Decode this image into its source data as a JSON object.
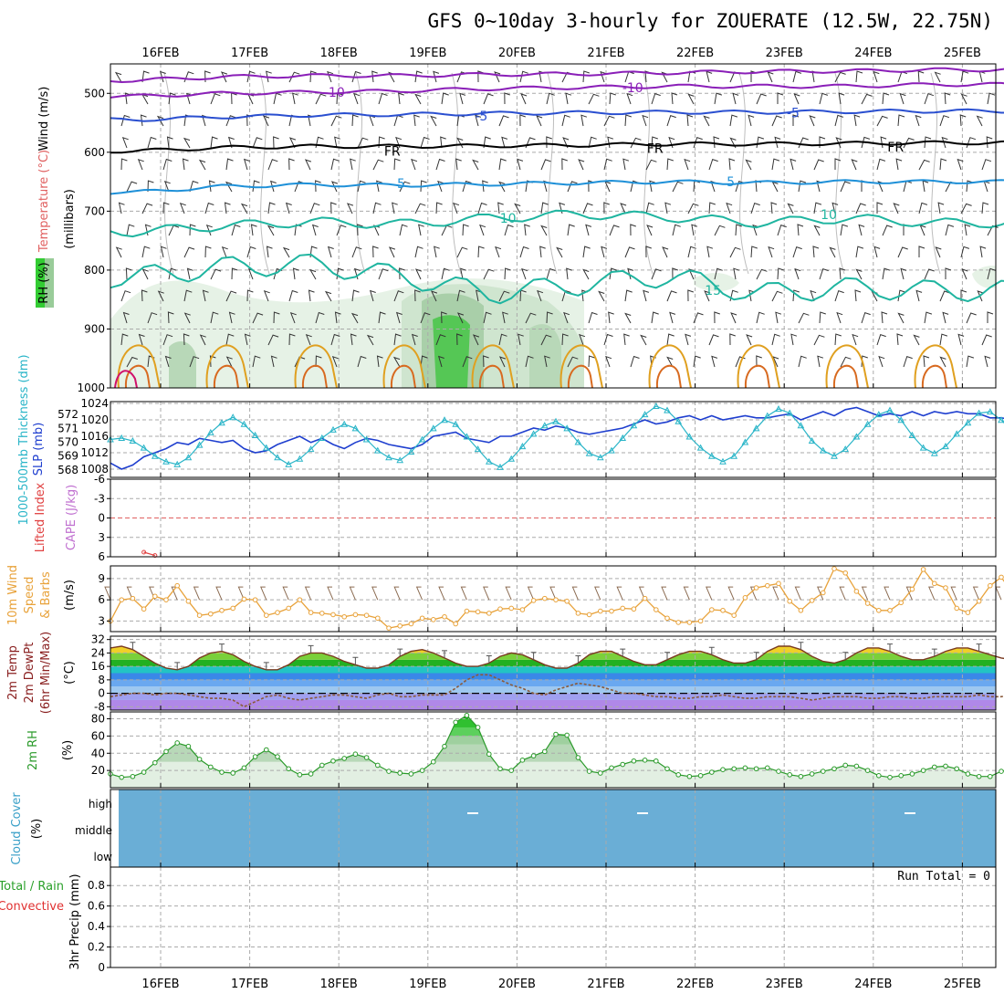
{
  "title": "GFS 0~10day 3-hourly for ZOUERATE (12.5W, 22.75N)",
  "dates": [
    "16FEB",
    "17FEB",
    "18FEB",
    "19FEB",
    "20FEB",
    "21FEB",
    "22FEB",
    "23FEB",
    "24FEB",
    "25FEB"
  ],
  "colors": {
    "slp": "#1f3fcf",
    "thickness": "#2ab5c8",
    "wind10m": "#e8a23a",
    "rh": "#2a9a2a",
    "cloud": "#6aaed6",
    "temp_zero": "#000000"
  },
  "chart_data": [
    {
      "id": "upper-air",
      "type": "contour",
      "ylabel_parts": [
        "Wind (m/s)",
        "Temperature (°C)",
        "RH (%)"
      ],
      "ylabel_unit": "(millibars)",
      "yticks": [
        500,
        600,
        700,
        800,
        900,
        1000
      ],
      "ylim": [
        450,
        1000
      ],
      "isotherms": [
        {
          "label": "-10",
          "color": "#8a1fb8",
          "p": [
            478,
            472,
            470,
            470,
            468,
            467,
            465,
            463,
            462,
            460
          ]
        },
        {
          "label": "-10",
          "color": "#8a1fb8",
          "p": [
            505,
            500,
            498,
            496,
            492,
            490,
            488,
            488,
            488,
            485
          ]
        },
        {
          "label": "-5",
          "color": "#2a4fd0",
          "p": [
            545,
            540,
            537,
            536,
            534,
            533,
            532,
            532,
            531,
            530
          ]
        },
        {
          "label": "FR",
          "color": "#000000",
          "p": [
            598,
            592,
            590,
            590,
            589,
            588,
            586,
            586,
            585,
            584
          ]
        },
        {
          "label": "5",
          "color": "#1e90d8",
          "p": [
            668,
            658,
            655,
            656,
            654,
            652,
            650,
            652,
            650,
            650
          ]
        },
        {
          "label": "10",
          "color": "#1fb5a0",
          "p": [
            735,
            725,
            718,
            722,
            712,
            705,
            710,
            720,
            712,
            720
          ]
        },
        {
          "label": "15",
          "color": "#1fb5a0",
          "p": [
            812,
            795,
            790,
            810,
            840,
            825,
            810,
            840,
            830,
            835
          ]
        }
      ],
      "contour_labels": [
        {
          "text": "-10",
          "date": 1.95,
          "p": 498,
          "color": "#8a1fb8"
        },
        {
          "text": "-10",
          "date": 5.3,
          "p": 490,
          "color": "#8a1fb8"
        },
        {
          "text": "-5",
          "date": 3.6,
          "p": 538,
          "color": "#2a4fd0"
        },
        {
          "text": "-5",
          "date": 7.1,
          "p": 533,
          "color": "#2a4fd0"
        },
        {
          "text": "FR",
          "date": 2.6,
          "p": 598,
          "color": "#000000"
        },
        {
          "text": "FR",
          "date": 5.55,
          "p": 593,
          "color": "#000000"
        },
        {
          "text": "FR",
          "date": 8.25,
          "p": 591,
          "color": "#000000"
        },
        {
          "text": "5",
          "date": 2.7,
          "p": 653,
          "color": "#1e90d8"
        },
        {
          "text": "5",
          "date": 6.4,
          "p": 650,
          "color": "#1e90d8"
        },
        {
          "text": "10",
          "date": 3.9,
          "p": 712,
          "color": "#1fb5a0"
        },
        {
          "text": "10",
          "date": 7.5,
          "p": 706,
          "color": "#1fb5a0"
        },
        {
          "text": "15",
          "date": 6.2,
          "p": 834,
          "color": "#1fb5a0"
        }
      ]
    },
    {
      "id": "slp-thickness",
      "type": "line",
      "ylabel_left": "1000-500mb Thickness (dm)",
      "ylabel_right": "SLP (mb)",
      "yticks_thk": [
        568,
        569,
        570,
        571,
        572
      ],
      "yticks_slp": [
        1008,
        1012,
        1016,
        1020,
        1024
      ],
      "series": [
        {
          "key": "slp",
          "values": [
            1009.5,
            1008.0,
            1009.0,
            1011.0,
            1012.0,
            1013.0,
            1014.5,
            1014.0,
            1015.5,
            1015.0,
            1014.5,
            1015.0,
            1013.0,
            1012.0,
            1012.5,
            1014.0,
            1015.0,
            1016.0,
            1014.5,
            1015.5,
            1014.0,
            1013.0,
            1014.5,
            1015.5,
            1015.0,
            1014.0,
            1013.5,
            1013.0,
            1014.0,
            1016.0,
            1016.5,
            1017.0,
            1015.5,
            1015.0,
            1014.5,
            1016.0,
            1016.0,
            1017.0,
            1018.0,
            1017.5,
            1018.5,
            1018.0,
            1017.0,
            1016.5,
            1017.0,
            1017.5,
            1018.0,
            1019.0,
            1020.0,
            1019.0,
            1019.5,
            1020.5,
            1021.0,
            1020.0,
            1021.0,
            1020.0,
            1020.5,
            1021.0,
            1020.5,
            1020.5,
            1021.0,
            1021.5,
            1020.0,
            1021.0,
            1022.0,
            1021.0,
            1022.5,
            1023.0,
            1022.0,
            1021.0,
            1021.5,
            1021.0,
            1022.0,
            1021.0,
            1022.0,
            1021.5,
            1022.0,
            1021.5,
            1021.5,
            1020.5,
            1020.5,
            1020.0,
            1020.0
          ]
        },
        {
          "key": "thickness",
          "values": [
            570.2,
            570.3,
            570.1,
            569.6,
            569.0,
            568.6,
            568.4,
            568.9,
            569.8,
            570.7,
            571.4,
            571.8,
            571.3,
            570.5,
            569.6,
            568.9,
            568.4,
            568.8,
            569.5,
            570.3,
            570.9,
            571.3,
            571.0,
            570.2,
            569.4,
            568.9,
            568.7,
            569.3,
            570.2,
            571.0,
            571.6,
            571.3,
            570.4,
            569.5,
            568.6,
            568.2,
            568.8,
            569.7,
            570.6,
            571.2,
            571.5,
            571.0,
            570.0,
            569.2,
            568.9,
            569.4,
            570.3,
            571.2,
            572.0,
            572.6,
            572.3,
            571.5,
            570.4,
            569.6,
            569.0,
            568.6,
            569.0,
            570.0,
            571.0,
            571.9,
            572.4,
            572.1,
            571.2,
            570.1,
            569.4,
            569.0,
            569.5,
            570.4,
            571.3,
            572.0,
            572.3,
            571.6,
            570.5,
            569.6,
            569.2,
            569.7,
            570.6,
            571.4,
            572.1,
            572.2,
            571.6,
            570.8,
            570.2
          ]
        }
      ]
    },
    {
      "id": "li-cape",
      "type": "line",
      "ylabel_left": "Lifted Index",
      "ylabel_right": "CAPE (J/kg)",
      "yticks": [
        -6,
        -3,
        0,
        3,
        6
      ],
      "series": [
        {
          "key": "lifted_index",
          "values": [
            null,
            null,
            null,
            5.3,
            5.8
          ]
        }
      ]
    },
    {
      "id": "wind10m",
      "type": "line",
      "ylabel_parts": [
        "10m Wind",
        "Speed",
        "& Barbs"
      ],
      "ylabel_unit": "(m/s)",
      "yticks": [
        3,
        6,
        9
      ],
      "series": [
        {
          "key": "wind10m",
          "values": [
            3.0,
            6.0,
            6.2,
            4.7,
            6.5,
            6.0,
            8.0,
            5.8,
            3.8,
            4.0,
            4.5,
            4.8,
            6.1,
            6.0,
            3.8,
            4.2,
            4.8,
            6.0,
            4.2,
            4.1,
            3.9,
            3.6,
            3.9,
            3.8,
            3.4,
            2.0,
            2.3,
            2.6,
            3.4,
            3.2,
            3.6,
            2.6,
            4.4,
            4.3,
            4.1,
            4.7,
            4.8,
            4.6,
            5.9,
            6.2,
            6.0,
            5.8,
            4.1,
            3.9,
            4.4,
            4.4,
            4.8,
            4.7,
            6.2,
            4.6,
            3.4,
            2.8,
            2.8,
            3.0,
            4.6,
            4.5,
            3.8,
            6.3,
            7.7,
            8.0,
            8.3,
            5.8,
            4.5,
            5.9,
            7.0,
            10.4,
            9.8,
            7.2,
            5.5,
            4.5,
            4.5,
            5.6,
            7.5,
            10.3,
            8.3,
            7.7,
            4.8,
            4.2,
            5.8,
            8.0,
            9.2,
            7.0,
            4.0,
            3.5,
            3.3
          ]
        }
      ]
    },
    {
      "id": "temp",
      "type": "area",
      "ylabel_parts": [
        "2m Temp",
        "2m DewPt",
        "(6hr Min/Max)"
      ],
      "ylabel_unit": "(°C)",
      "yticks": [
        -8,
        0,
        8,
        16,
        24,
        32
      ],
      "series": [
        {
          "key": "temp",
          "values": [
            27,
            28,
            26,
            22,
            18,
            15,
            14,
            16,
            21,
            24,
            25,
            23,
            19,
            16,
            14,
            14,
            17,
            22,
            24,
            24,
            22,
            19,
            17,
            15,
            15,
            17,
            22,
            25,
            26,
            24,
            21,
            18,
            16,
            16,
            18,
            22,
            24,
            23,
            20,
            17,
            15,
            15,
            18,
            23,
            25,
            25,
            22,
            19,
            17,
            17,
            20,
            23,
            25,
            25,
            23,
            20,
            18,
            18,
            20,
            25,
            28,
            28,
            26,
            22,
            19,
            18,
            20,
            24,
            27,
            27,
            25,
            22,
            20,
            20,
            22,
            25,
            27,
            27,
            25,
            23,
            21,
            20,
            19
          ]
        },
        {
          "key": "dewpoint",
          "values": [
            -2,
            -1,
            0,
            0,
            -1,
            0,
            0,
            -1,
            -2,
            -3,
            -3,
            -4,
            -8,
            -5,
            -2,
            -1,
            -3,
            -4,
            -3,
            -2,
            -1,
            -1,
            -2,
            -3,
            -1,
            0,
            -2,
            -2,
            -1,
            -1,
            -1,
            3,
            8,
            11,
            11,
            8,
            5,
            3,
            0,
            -1,
            2,
            4,
            6,
            5,
            4,
            2,
            0,
            0,
            -1,
            -2,
            -2,
            -3,
            -3,
            -2,
            -2,
            -1,
            -2,
            -3,
            -3,
            -2,
            -2,
            -2,
            -3,
            -4,
            -3,
            -2,
            -2,
            -2,
            -3,
            -3,
            -2,
            -2,
            -3,
            -3,
            -2,
            -2,
            -2,
            -2,
            -1,
            -2,
            -2,
            -1,
            -1
          ]
        }
      ]
    },
    {
      "id": "rh",
      "type": "area",
      "ylabel": "2m RH",
      "ylabel_unit": "(%)",
      "yticks": [
        20,
        40,
        60,
        80
      ],
      "series": [
        {
          "key": "rh",
          "values": [
            16,
            12,
            13,
            18,
            29,
            42,
            52,
            48,
            33,
            24,
            18,
            17,
            23,
            36,
            44,
            36,
            22,
            15,
            16,
            26,
            31,
            34,
            39,
            35,
            26,
            19,
            17,
            16,
            20,
            30,
            48,
            76,
            84,
            70,
            39,
            22,
            20,
            32,
            37,
            42,
            62,
            61,
            35,
            19,
            17,
            23,
            27,
            31,
            32,
            31,
            22,
            15,
            13,
            14,
            18,
            21,
            22,
            23,
            22,
            23,
            19,
            15,
            13,
            16,
            19,
            22,
            26,
            25,
            20,
            14,
            12,
            14,
            16,
            20,
            24,
            25,
            22,
            16,
            13,
            13,
            19,
            22,
            27
          ]
        }
      ]
    },
    {
      "id": "cloud",
      "type": "heatmap",
      "ylabel": "Cloud Cover",
      "ylabel_unit": "(%)",
      "levels": [
        "high",
        "middle",
        "low"
      ]
    },
    {
      "id": "precip",
      "type": "bar",
      "ylabel_parts": [
        "Total / Rain",
        "Convective"
      ],
      "ylabel_unit": "3hr Precip (mm)",
      "yticks": [
        0,
        0.2,
        0.4,
        0.6,
        0.8
      ],
      "run_total": "Run Total = 0",
      "values": []
    }
  ]
}
